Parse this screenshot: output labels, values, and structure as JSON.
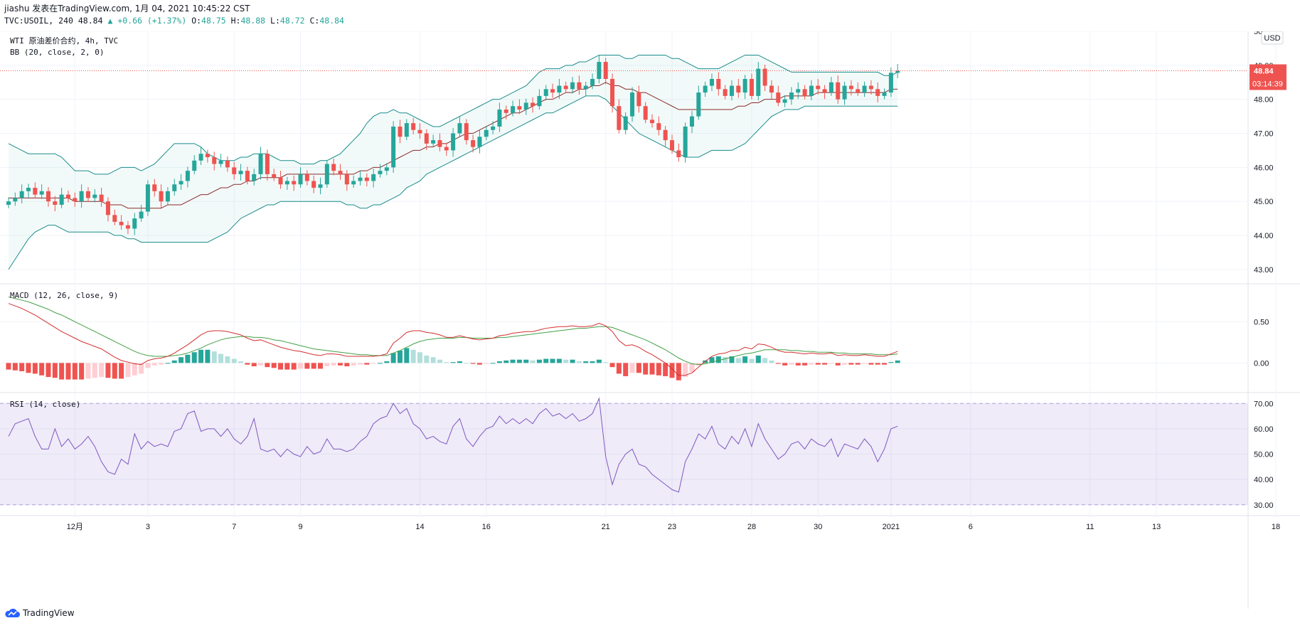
{
  "header": {
    "line1": "jiashu 发表在TradingView.com, 1月 04, 2021 10:45:22 CST",
    "symbol": "TVC:USOIL, 240",
    "last": "48.84",
    "change": "+0.66 (+1.37%)",
    "o_label": "O:",
    "o_val": "48.75",
    "h_label": "H:",
    "h_val": "48.88",
    "l_label": "L:",
    "l_val": "48.72",
    "c_label": "C:",
    "c_val": "48.84"
  },
  "footer": {
    "brand": "TradingView"
  },
  "colors": {
    "up": "#26a69a",
    "down": "#ef5350",
    "band": "#1a8c8c",
    "basis": "#8b2b2b",
    "rsi": "#7e57c2"
  },
  "chart_data": [
    {
      "type": "candlestick",
      "title": "WTI 原油差价合约, 4h, TVC",
      "indicator": "BB (20, close, 2, 0)",
      "currency": "USD",
      "ylim": [
        42.6,
        50.0
      ],
      "y_ticks": [
        "50.00",
        "49.00",
        "48.00",
        "47.00",
        "46.00",
        "45.00",
        "44.00",
        "43.00"
      ],
      "last_price": "48.84",
      "countdown": "03:14:39",
      "x_ticks": [
        {
          "label": "12月",
          "i": 10
        },
        {
          "label": "3",
          "i": 21
        },
        {
          "label": "7",
          "i": 34
        },
        {
          "label": "9",
          "i": 44
        },
        {
          "label": "14",
          "i": 62
        },
        {
          "label": "16",
          "i": 72
        },
        {
          "label": "21",
          "i": 90
        },
        {
          "label": "23",
          "i": 100
        },
        {
          "label": "28",
          "i": 112
        },
        {
          "label": "30",
          "i": 122
        },
        {
          "label": "2021",
          "i": 133
        },
        {
          "label": "6",
          "i": 145
        },
        {
          "label": "11",
          "i": 163
        },
        {
          "label": "13",
          "i": 173
        },
        {
          "label": "18",
          "i": 191
        }
      ],
      "closes": [
        45.0,
        45.1,
        45.3,
        45.4,
        45.2,
        45.3,
        45.0,
        44.9,
        45.2,
        45.1,
        45.0,
        45.3,
        45.1,
        45.2,
        45.0,
        44.6,
        44.4,
        44.3,
        44.2,
        44.5,
        44.7,
        45.5,
        45.3,
        45.0,
        45.3,
        45.5,
        45.6,
        45.9,
        46.2,
        46.4,
        46.3,
        46.1,
        46.2,
        46.0,
        45.8,
        45.9,
        45.6,
        45.8,
        46.4,
        45.8,
        45.7,
        45.5,
        45.6,
        45.5,
        45.8,
        45.6,
        45.4,
        45.5,
        46.1,
        45.9,
        45.8,
        45.5,
        45.6,
        45.7,
        45.6,
        45.8,
        45.9,
        46.0,
        47.2,
        46.9,
        47.3,
        47.1,
        47.0,
        46.7,
        46.8,
        46.6,
        46.5,
        47.0,
        47.3,
        46.8,
        46.6,
        46.9,
        47.1,
        47.2,
        47.7,
        47.6,
        47.8,
        47.7,
        47.9,
        47.8,
        48.1,
        48.3,
        48.2,
        48.4,
        48.3,
        48.5,
        48.3,
        48.4,
        48.6,
        49.1,
        48.6,
        47.8,
        47.1,
        47.5,
        48.2,
        47.8,
        47.4,
        47.3,
        47.1,
        46.8,
        46.5,
        46.3,
        47.2,
        47.5,
        48.2,
        48.4,
        48.6,
        48.3,
        48.1,
        48.4,
        48.2,
        48.6,
        48.1,
        48.9,
        48.4,
        48.2,
        47.9,
        48.0,
        48.2,
        48.3,
        48.1,
        48.4,
        48.3,
        48.2,
        48.5,
        48.0,
        48.4,
        48.3,
        48.2,
        48.4,
        48.3,
        48.1,
        48.2,
        48.78,
        48.84
      ],
      "bb_upper": [
        46.7,
        46.6,
        46.5,
        46.4,
        46.4,
        46.4,
        46.4,
        46.4,
        46.3,
        46.1,
        45.9,
        45.9,
        45.9,
        45.8,
        45.8,
        45.8,
        45.9,
        46.0,
        46.0,
        46.0,
        45.9,
        46.0,
        46.1,
        46.3,
        46.5,
        46.7,
        46.7,
        46.7,
        46.7,
        46.6,
        46.4,
        46.3,
        46.2,
        46.2,
        46.2,
        46.3,
        46.3,
        46.4,
        46.4,
        46.4,
        46.3,
        46.2,
        46.2,
        46.2,
        46.1,
        46.1,
        46.1,
        46.2,
        46.2,
        46.3,
        46.4,
        46.6,
        46.8,
        47.0,
        47.3,
        47.5,
        47.6,
        47.6,
        47.7,
        47.6,
        47.6,
        47.5,
        47.4,
        47.3,
        47.2,
        47.2,
        47.3,
        47.4,
        47.5,
        47.6,
        47.7,
        47.8,
        47.9,
        48.0,
        48.0,
        48.1,
        48.2,
        48.3,
        48.4,
        48.6,
        48.8,
        48.9,
        48.9,
        48.9,
        49.0,
        49.0,
        49.1,
        49.1,
        49.2,
        49.3,
        49.3,
        49.3,
        49.3,
        49.2,
        49.2,
        49.3,
        49.3,
        49.3,
        49.3,
        49.3,
        49.2,
        49.2,
        49.1,
        49.0,
        48.9,
        48.9,
        48.9,
        48.9,
        49.0,
        49.1,
        49.2,
        49.3,
        49.3,
        49.3,
        49.2,
        49.1,
        49.0,
        48.9,
        48.8,
        48.8,
        48.8,
        48.8,
        48.8,
        48.8,
        48.8,
        48.8,
        48.8,
        48.8,
        48.8,
        48.8,
        48.8,
        48.8,
        48.7,
        48.7,
        48.8
      ],
      "bb_basis": [
        45.1,
        45.1,
        45.1,
        45.1,
        45.1,
        45.1,
        45.1,
        45.1,
        45.1,
        45.1,
        45.0,
        45.0,
        45.0,
        45.0,
        45.0,
        44.9,
        44.9,
        44.9,
        44.8,
        44.8,
        44.8,
        44.8,
        44.8,
        44.8,
        44.9,
        44.9,
        44.9,
        45.0,
        45.1,
        45.2,
        45.2,
        45.3,
        45.4,
        45.4,
        45.5,
        45.5,
        45.6,
        45.6,
        45.7,
        45.7,
        45.7,
        45.7,
        45.8,
        45.8,
        45.8,
        45.8,
        45.8,
        45.8,
        45.8,
        45.8,
        45.8,
        45.8,
        45.8,
        45.9,
        45.9,
        46.0,
        46.0,
        46.1,
        46.2,
        46.3,
        46.4,
        46.5,
        46.5,
        46.6,
        46.6,
        46.7,
        46.7,
        46.8,
        46.9,
        47.0,
        47.0,
        47.1,
        47.2,
        47.3,
        47.4,
        47.5,
        47.6,
        47.6,
        47.7,
        47.8,
        47.9,
        48.0,
        48.0,
        48.1,
        48.2,
        48.2,
        48.3,
        48.3,
        48.4,
        48.4,
        48.5,
        48.4,
        48.4,
        48.3,
        48.3,
        48.2,
        48.2,
        48.1,
        48.0,
        47.9,
        47.8,
        47.7,
        47.7,
        47.7,
        47.7,
        47.7,
        47.7,
        47.7,
        47.7,
        47.7,
        47.8,
        47.8,
        47.9,
        47.9,
        48.0,
        48.0,
        48.0,
        48.1,
        48.1,
        48.1,
        48.1,
        48.1,
        48.2,
        48.2,
        48.2,
        48.2,
        48.2,
        48.2,
        48.2,
        48.2,
        48.2,
        48.2,
        48.2,
        48.3,
        48.3
      ],
      "bb_lower": [
        43.0,
        43.3,
        43.6,
        43.9,
        44.1,
        44.2,
        44.3,
        44.3,
        44.2,
        44.1,
        44.1,
        44.1,
        44.1,
        44.1,
        44.1,
        44.1,
        44.0,
        44.0,
        43.9,
        43.9,
        43.8,
        43.8,
        43.8,
        43.8,
        43.8,
        43.8,
        43.8,
        43.8,
        43.8,
        43.8,
        43.8,
        43.9,
        44.0,
        44.1,
        44.3,
        44.5,
        44.6,
        44.7,
        44.8,
        44.9,
        44.9,
        45.0,
        45.0,
        45.0,
        45.0,
        45.0,
        45.0,
        45.0,
        45.0,
        45.0,
        45.0,
        44.9,
        44.9,
        44.8,
        44.8,
        44.9,
        44.9,
        45.0,
        45.1,
        45.2,
        45.4,
        45.5,
        45.6,
        45.8,
        45.9,
        46.0,
        46.1,
        46.2,
        46.3,
        46.4,
        46.5,
        46.6,
        46.7,
        46.8,
        46.9,
        47.0,
        47.1,
        47.2,
        47.3,
        47.4,
        47.5,
        47.6,
        47.6,
        47.7,
        47.8,
        47.9,
        48.0,
        48.1,
        48.1,
        48.1,
        48.0,
        47.8,
        47.6,
        47.4,
        47.2,
        47.0,
        46.9,
        46.8,
        46.7,
        46.6,
        46.5,
        46.4,
        46.3,
        46.3,
        46.3,
        46.4,
        46.5,
        46.5,
        46.5,
        46.5,
        46.6,
        46.7,
        46.9,
        47.1,
        47.3,
        47.5,
        47.6,
        47.7,
        47.7,
        47.7,
        47.8,
        47.8,
        47.8,
        47.8,
        47.8,
        47.8,
        47.8,
        47.8,
        47.8,
        47.8,
        47.8,
        47.8,
        47.8,
        47.8,
        47.8
      ]
    },
    {
      "type": "macd",
      "title": "MACD (12, 26, close, 9)",
      "ylim": [
        -0.35,
        0.95
      ],
      "y_ticks": [
        "0.50",
        "0.00"
      ],
      "macd": [
        0.72,
        0.69,
        0.66,
        0.62,
        0.58,
        0.53,
        0.48,
        0.43,
        0.38,
        0.34,
        0.3,
        0.26,
        0.23,
        0.2,
        0.17,
        0.12,
        0.07,
        0.03,
        0.01,
        -0.01,
        -0.02,
        0.03,
        0.05,
        0.06,
        0.08,
        0.12,
        0.17,
        0.22,
        0.28,
        0.34,
        0.38,
        0.39,
        0.39,
        0.38,
        0.36,
        0.34,
        0.3,
        0.27,
        0.28,
        0.25,
        0.22,
        0.19,
        0.17,
        0.15,
        0.14,
        0.12,
        0.1,
        0.09,
        0.11,
        0.11,
        0.1,
        0.08,
        0.08,
        0.08,
        0.08,
        0.08,
        0.09,
        0.11,
        0.24,
        0.3,
        0.37,
        0.39,
        0.39,
        0.37,
        0.36,
        0.34,
        0.31,
        0.31,
        0.33,
        0.31,
        0.29,
        0.28,
        0.29,
        0.3,
        0.33,
        0.34,
        0.36,
        0.37,
        0.38,
        0.38,
        0.4,
        0.42,
        0.43,
        0.44,
        0.44,
        0.45,
        0.44,
        0.44,
        0.45,
        0.48,
        0.45,
        0.38,
        0.27,
        0.21,
        0.22,
        0.19,
        0.14,
        0.1,
        0.05,
        0.0,
        -0.07,
        -0.15,
        -0.15,
        -0.12,
        -0.05,
        0.02,
        0.08,
        0.11,
        0.12,
        0.15,
        0.15,
        0.19,
        0.17,
        0.23,
        0.22,
        0.19,
        0.15,
        0.13,
        0.13,
        0.12,
        0.11,
        0.12,
        0.11,
        0.11,
        0.12,
        0.09,
        0.1,
        0.09,
        0.09,
        0.1,
        0.09,
        0.08,
        0.08,
        0.11,
        0.14
      ],
      "signal": [
        0.8,
        0.78,
        0.76,
        0.74,
        0.71,
        0.68,
        0.65,
        0.61,
        0.58,
        0.54,
        0.5,
        0.46,
        0.42,
        0.38,
        0.34,
        0.3,
        0.26,
        0.22,
        0.18,
        0.14,
        0.11,
        0.09,
        0.08,
        0.08,
        0.08,
        0.09,
        0.1,
        0.12,
        0.15,
        0.18,
        0.22,
        0.25,
        0.28,
        0.3,
        0.31,
        0.32,
        0.32,
        0.31,
        0.31,
        0.3,
        0.28,
        0.27,
        0.25,
        0.23,
        0.21,
        0.19,
        0.17,
        0.16,
        0.15,
        0.14,
        0.13,
        0.12,
        0.11,
        0.1,
        0.1,
        0.09,
        0.09,
        0.09,
        0.12,
        0.15,
        0.19,
        0.23,
        0.26,
        0.28,
        0.29,
        0.3,
        0.3,
        0.3,
        0.31,
        0.31,
        0.3,
        0.3,
        0.3,
        0.3,
        0.31,
        0.31,
        0.32,
        0.33,
        0.34,
        0.35,
        0.36,
        0.37,
        0.38,
        0.39,
        0.4,
        0.41,
        0.42,
        0.42,
        0.43,
        0.44,
        0.44,
        0.43,
        0.4,
        0.37,
        0.34,
        0.31,
        0.28,
        0.24,
        0.2,
        0.16,
        0.11,
        0.06,
        0.02,
        -0.01,
        -0.02,
        -0.01,
        0.01,
        0.03,
        0.05,
        0.07,
        0.09,
        0.11,
        0.12,
        0.14,
        0.16,
        0.16,
        0.16,
        0.16,
        0.15,
        0.15,
        0.14,
        0.14,
        0.13,
        0.13,
        0.13,
        0.12,
        0.12,
        0.11,
        0.11,
        0.11,
        0.11,
        0.1,
        0.1,
        0.1,
        0.11
      ],
      "histogram": [
        -0.08,
        -0.09,
        -0.1,
        -0.12,
        -0.13,
        -0.15,
        -0.17,
        -0.18,
        -0.2,
        -0.2,
        -0.2,
        -0.2,
        -0.19,
        -0.18,
        -0.17,
        -0.18,
        -0.19,
        -0.19,
        -0.17,
        -0.15,
        -0.13,
        -0.06,
        -0.03,
        -0.02,
        0.0,
        0.03,
        0.07,
        0.1,
        0.13,
        0.16,
        0.16,
        0.14,
        0.11,
        0.08,
        0.05,
        0.02,
        -0.02,
        -0.04,
        -0.03,
        -0.05,
        -0.06,
        -0.08,
        -0.08,
        -0.08,
        -0.07,
        -0.07,
        -0.07,
        -0.07,
        -0.04,
        -0.03,
        -0.03,
        -0.04,
        -0.03,
        -0.02,
        -0.02,
        -0.01,
        0.0,
        0.02,
        0.12,
        0.15,
        0.18,
        0.16,
        0.13,
        0.09,
        0.07,
        0.04,
        0.01,
        0.01,
        0.02,
        0.0,
        -0.01,
        -0.02,
        -0.01,
        0.0,
        0.02,
        0.03,
        0.04,
        0.04,
        0.04,
        0.03,
        0.04,
        0.05,
        0.05,
        0.05,
        0.04,
        0.04,
        0.02,
        0.02,
        0.02,
        0.04,
        0.01,
        -0.05,
        -0.13,
        -0.16,
        -0.12,
        -0.12,
        -0.14,
        -0.14,
        -0.15,
        -0.16,
        -0.18,
        -0.21,
        -0.17,
        -0.11,
        -0.03,
        0.03,
        0.07,
        0.08,
        0.07,
        0.08,
        0.06,
        0.08,
        0.05,
        0.09,
        0.06,
        0.03,
        -0.01,
        -0.03,
        -0.02,
        -0.03,
        -0.03,
        -0.02,
        -0.02,
        -0.02,
        -0.01,
        -0.03,
        -0.02,
        -0.02,
        -0.02,
        -0.01,
        -0.02,
        -0.02,
        -0.02,
        0.01,
        0.03
      ]
    },
    {
      "type": "rsi",
      "title": "RSI (14, close)",
      "ylim": [
        26,
        74
      ],
      "y_ticks": [
        "70.00",
        "60.00",
        "50.00",
        "40.00",
        "30.00"
      ],
      "band": [
        30,
        70
      ],
      "values": [
        57,
        62,
        63,
        64,
        57,
        52,
        52,
        60,
        53,
        56,
        52,
        54,
        57,
        53,
        47,
        43,
        42,
        48,
        46,
        58,
        52,
        55,
        53,
        54,
        53,
        59,
        60,
        66,
        67,
        59,
        60,
        60,
        57,
        60,
        56,
        54,
        57,
        64,
        52,
        51,
        52,
        49,
        52,
        50,
        49,
        53,
        50,
        51,
        56,
        52,
        52,
        51,
        52,
        55,
        57,
        62,
        64,
        65,
        70,
        66,
        68,
        62,
        60,
        56,
        57,
        55,
        54,
        61,
        64,
        56,
        53,
        57,
        60,
        61,
        65,
        62,
        64,
        62,
        64,
        62,
        66,
        68,
        65,
        66,
        64,
        66,
        63,
        64,
        66,
        72,
        49,
        38,
        46,
        50,
        52,
        46,
        45,
        42,
        40,
        38,
        36,
        35,
        47,
        52,
        58,
        56,
        61,
        54,
        52,
        57,
        54,
        60,
        53,
        62,
        56,
        52,
        48,
        50,
        54,
        55,
        52,
        56,
        54,
        53,
        56,
        49,
        54,
        53,
        52,
        56,
        53,
        47,
        52,
        60,
        61
      ]
    }
  ]
}
